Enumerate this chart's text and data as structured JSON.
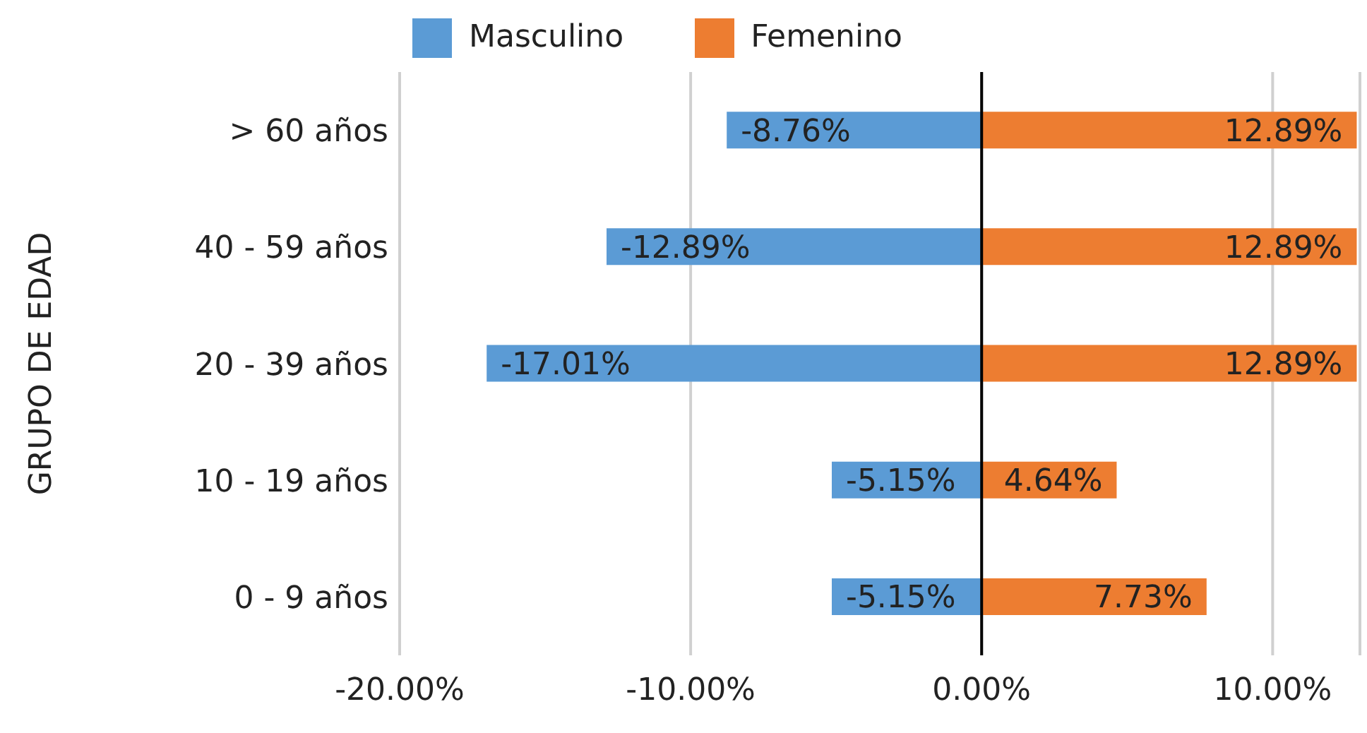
{
  "chart_data": {
    "type": "bar",
    "orientation": "horizontal",
    "stacked": true,
    "ylabel": "GRUPO DE EDAD",
    "categories": [
      "> 60 años",
      "40 - 59 años",
      "20 - 39 años",
      "10 - 19 años",
      "0 - 9 años"
    ],
    "series": [
      {
        "name": "Masculino",
        "color": "#5b9bd5",
        "values": [
          -8.76,
          -12.89,
          -17.01,
          -5.15,
          -5.15
        ],
        "value_labels": [
          "-8.76%",
          "-12.89%",
          "-17.01%",
          "-5.15%",
          "-5.15%"
        ]
      },
      {
        "name": "Femenino",
        "color": "#ed7d31",
        "values": [
          12.89,
          12.89,
          12.89,
          4.64,
          7.73
        ],
        "value_labels": [
          "12.89%",
          "12.89%",
          "12.89%",
          "4.64%",
          "7.73%"
        ]
      }
    ],
    "xlim": [
      -20,
      13
    ],
    "xticks": [
      {
        "value": -20,
        "label": "-20.00%"
      },
      {
        "value": -10,
        "label": "-10.00%"
      },
      {
        "value": 0,
        "label": "0.00%"
      },
      {
        "value": 10,
        "label": "10.00%"
      }
    ],
    "ref_lines": [
      {
        "axis": "x",
        "value": 0,
        "color": "#000000"
      }
    ],
    "grid": "x",
    "legend": "top"
  }
}
